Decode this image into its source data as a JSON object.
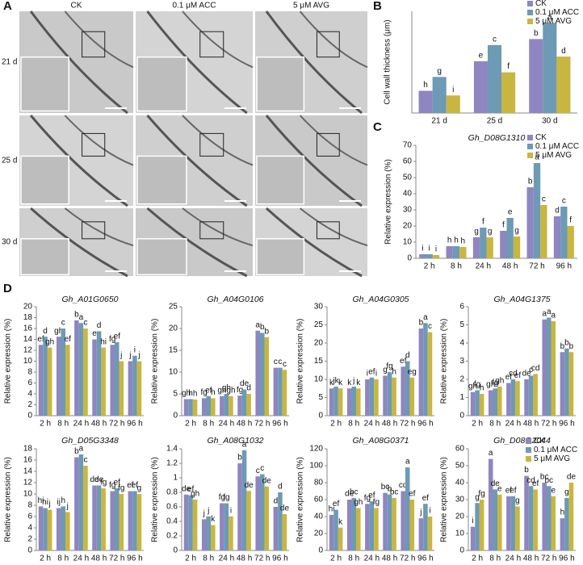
{
  "figure": {
    "panels": [
      "A",
      "B",
      "C",
      "D"
    ],
    "conditions": [
      "CK",
      "0.1 μM ACC",
      "5 μM AVG"
    ],
    "timepoints": [
      "21 d",
      "25 d",
      "30 d"
    ]
  },
  "chart_data": [
    {
      "type": "bar",
      "ylabel": "Cell wall thickness (μm)",
      "categories": [
        "21 d",
        "25 d",
        "30 d"
      ],
      "ylim": [
        0,
        2.2
      ],
      "legend": "top-right",
      "series": [
        {
          "name": "CK",
          "color": "#8e86c0",
          "values": [
            0.48,
            1.12,
            1.6
          ],
          "letters": [
            "h",
            "e",
            "b"
          ]
        },
        {
          "name": "0.1 μM ACC",
          "color": "#6d9ab4",
          "values": [
            0.78,
            1.47,
            1.95
          ],
          "letters": [
            "g",
            "c",
            "a"
          ]
        },
        {
          "name": "5 μM AVG",
          "color": "#c9b640",
          "values": [
            0.38,
            0.88,
            1.22
          ],
          "letters": [
            "i",
            "f",
            "d"
          ]
        }
      ]
    },
    {
      "type": "bar",
      "title": "Gh_D08G1310",
      "ylabel": "Relative expression (%)",
      "categories": [
        "2 h",
        "8 h",
        "24 h",
        "48 h",
        "72 h",
        "96 h"
      ],
      "ylim": [
        0,
        70
      ],
      "yticks": [
        0,
        10,
        20,
        30,
        40,
        50,
        60,
        70
      ],
      "legend": "top-right",
      "series": [
        {
          "name": "CK",
          "color": "#8e86c0",
          "values": [
            2.5,
            7.5,
            13,
            17,
            44,
            26
          ],
          "letters": [
            "i",
            "h",
            "g",
            "f",
            "b",
            "d"
          ]
        },
        {
          "name": "0.1 μM ACC",
          "color": "#6d9ab4",
          "values": [
            2.5,
            7.5,
            19,
            25,
            59,
            32
          ],
          "letters": [
            "i",
            "h",
            "f",
            "e",
            "a",
            "c"
          ]
        },
        {
          "name": "5 μM AVG",
          "color": "#c9b640",
          "values": [
            2,
            7,
            13,
            13.5,
            33,
            20
          ],
          "letters": [
            "i",
            "h",
            "g",
            "g",
            "c",
            "f"
          ]
        }
      ]
    },
    {
      "type": "bar",
      "title": "Gh_A01G0650",
      "ylabel": "Relative expression (%)",
      "categories": [
        "2 h",
        "8 h",
        "24 h",
        "48 h",
        "72 h",
        "96 h"
      ],
      "ylim": [
        0,
        20
      ],
      "yticks": [
        0,
        2,
        4,
        6,
        8,
        10,
        12,
        14,
        16,
        18,
        20
      ],
      "series": [
        {
          "color": "#8e86c0",
          "values": [
            13,
            14.5,
            17.5,
            14,
            13,
            10
          ],
          "letters": [
            "ef",
            "gh",
            "b",
            "e",
            "fg",
            "j"
          ]
        },
        {
          "color": "#6d9ab4",
          "values": [
            14.5,
            16,
            17,
            15.5,
            13.5,
            11
          ],
          "letters": [
            "d",
            "c",
            "a",
            "d",
            "ef",
            "i"
          ]
        },
        {
          "color": "#c9b640",
          "values": [
            12.5,
            13,
            16,
            12.5,
            10,
            10
          ],
          "letters": [
            "gh",
            "ef",
            "c",
            "hi",
            "j",
            "j"
          ]
        }
      ]
    },
    {
      "type": "bar",
      "title": "Gh_A04G0106",
      "ylabel": "Relative expression (%)",
      "categories": [
        "2 h",
        "8 h",
        "24 h",
        "48 h",
        "72 h",
        "96 h"
      ],
      "ylim": [
        0,
        25
      ],
      "yticks": [
        0,
        5,
        10,
        15,
        20,
        25
      ],
      "series": [
        {
          "color": "#8e86c0",
          "values": [
            3.8,
            4,
            4.5,
            4.6,
            19.5,
            11
          ],
          "letters": [
            "gh",
            "fg",
            "gh",
            "fg",
            "a",
            "c"
          ]
        },
        {
          "color": "#6d9ab4",
          "values": [
            3.8,
            4.5,
            5,
            6,
            19,
            11
          ],
          "letters": [
            "h",
            "ef",
            "gh",
            "de",
            "b",
            "c"
          ]
        },
        {
          "color": "#c9b640",
          "values": [
            3.7,
            4,
            4.5,
            5,
            18,
            10.5
          ],
          "letters": [
            "h",
            "h",
            "gh",
            "d",
            "b",
            "c"
          ]
        }
      ]
    },
    {
      "type": "bar",
      "title": "Gh_A04G0305",
      "ylabel": "Relative expression (%)",
      "categories": [
        "2 h",
        "8 h",
        "24 h",
        "48 h",
        "72 h",
        "96 h"
      ],
      "ylim": [
        0,
        30
      ],
      "yticks": [
        0,
        5,
        10,
        15,
        20,
        25,
        30
      ],
      "series": [
        {
          "color": "#8e86c0",
          "values": [
            7.5,
            7.5,
            10,
            11,
            13.5,
            24
          ],
          "letters": [
            "k",
            "k",
            "i",
            "g",
            "ef",
            "b"
          ]
        },
        {
          "color": "#6d9ab4",
          "values": [
            8,
            8,
            10.5,
            12,
            15,
            25.5
          ],
          "letters": [
            "jk",
            "j",
            "ef",
            "fg",
            "d",
            "a"
          ]
        },
        {
          "color": "#c9b640",
          "values": [
            7.5,
            7.5,
            10,
            10.5,
            10.5,
            23
          ],
          "letters": [
            "k",
            "k",
            "i",
            "h",
            "eg",
            "c"
          ]
        }
      ]
    },
    {
      "type": "bar",
      "title": "Gh_A04G1375",
      "ylabel": "Relative expression (%)",
      "categories": [
        "2 h",
        "8 h",
        "24 h",
        "48 h",
        "72 h",
        "96 h"
      ],
      "ylim": [
        0,
        6
      ],
      "yticks": [
        0,
        1,
        2,
        3,
        4,
        5,
        6
      ],
      "series": [
        {
          "color": "#8e86c0",
          "values": [
            1.3,
            1.4,
            1.8,
            2,
            5.3,
            3.5
          ],
          "letters": [
            "gh",
            "gh",
            "ef",
            "de",
            "a",
            "b"
          ]
        },
        {
          "color": "#6d9ab4",
          "values": [
            1.4,
            1.5,
            2,
            2.2,
            5.4,
            3.7
          ],
          "letters": [
            "fg",
            "fg",
            "cd",
            "c",
            "a",
            "b"
          ]
        },
        {
          "color": "#c9b640",
          "values": [
            1.2,
            1.6,
            1.9,
            2.3,
            5.2,
            3.5
          ],
          "letters": [
            "h",
            "gh",
            "ef",
            "cd",
            "a",
            "b"
          ]
        }
      ]
    },
    {
      "type": "bar",
      "title": "Gh_D05G3348",
      "ylabel": "Relative expression (%)",
      "categories": [
        "2 h",
        "8 h",
        "24 h",
        "48 h",
        "72 h",
        "96 h"
      ],
      "ylim": [
        0,
        18
      ],
      "yticks": [
        0,
        2,
        4,
        6,
        8,
        10,
        12,
        14,
        16,
        18
      ],
      "series": [
        {
          "color": "#8e86c0",
          "values": [
            7.8,
            7.5,
            16.5,
            11.5,
            10.5,
            10.5
          ],
          "letters": [
            "hi",
            "ij",
            "b",
            "de",
            "fg",
            "ef"
          ]
        },
        {
          "color": "#6d9ab4",
          "values": [
            7.5,
            7.8,
            17,
            11.5,
            11,
            10.5
          ],
          "letters": [
            "hi",
            "h",
            "a",
            "de",
            "ef",
            "ef"
          ]
        },
        {
          "color": "#c9b640",
          "values": [
            7.2,
            6.8,
            15,
            11,
            10,
            10
          ],
          "letters": [
            "j",
            "j",
            "c",
            "fg",
            "fg",
            "g"
          ]
        }
      ]
    },
    {
      "type": "bar",
      "title": "Gh_A08G1032",
      "ylabel": "Relative expression (%)",
      "categories": [
        "2 h",
        "8 h",
        "24 h",
        "48 h",
        "72 h",
        "96 h"
      ],
      "ylim": [
        0,
        1.4
      ],
      "yticks": [
        0,
        0.2,
        0.4,
        0.6,
        0.8,
        1,
        1.2,
        1.4
      ],
      "series": [
        {
          "color": "#8e86c0",
          "values": [
            0.77,
            0.43,
            0.65,
            1.2,
            1.02,
            0.6
          ],
          "letters": [
            "de",
            "j",
            "fg",
            "b",
            "c",
            "d"
          ]
        },
        {
          "color": "#6d9ab4",
          "values": [
            0.76,
            0.47,
            0.65,
            1.38,
            1.05,
            0.8
          ],
          "letters": [
            "ef",
            "j",
            "fg",
            "a",
            "c",
            "d"
          ]
        },
        {
          "color": "#c9b640",
          "values": [
            0.7,
            0.35,
            0.47,
            0.82,
            0.88,
            0.5
          ],
          "letters": [
            "gh",
            "k",
            "i",
            "de",
            "de",
            "de"
          ]
        }
      ]
    },
    {
      "type": "bar",
      "title": "Gh_A08G0371",
      "ylabel": "Relative expression (%)",
      "categories": [
        "2 h",
        "8 h",
        "24 h",
        "48 h",
        "72 h",
        "96 h"
      ],
      "ylim": [
        0,
        120
      ],
      "yticks": [
        0,
        20,
        40,
        60,
        80,
        100,
        120
      ],
      "series": [
        {
          "color": "#8e86c0",
          "values": [
            42,
            60,
            55,
            68,
            70,
            38
          ],
          "letters": [
            "hi",
            "de",
            "fg",
            "bc",
            "cd",
            "j"
          ]
        },
        {
          "color": "#6d9ab4",
          "values": [
            48,
            62,
            58,
            66,
            98,
            55
          ],
          "letters": [
            "ef",
            "bc",
            "ef",
            "b",
            "a",
            "ef"
          ]
        },
        {
          "color": "#c9b640",
          "values": [
            27,
            50,
            50,
            62,
            60,
            40
          ],
          "letters": [
            "k",
            "gh",
            "fg",
            "bc",
            "ef",
            "i"
          ]
        }
      ]
    },
    {
      "type": "bar",
      "title": "Gh_D08G2044",
      "ylabel": "Relative expression (%)",
      "categories": [
        "2 h",
        "8 h",
        "24 h",
        "48 h",
        "72 h",
        "96 h"
      ],
      "ylim": [
        0,
        60
      ],
      "yticks": [
        0,
        10,
        20,
        30,
        40,
        50,
        60
      ],
      "legend": "top-right",
      "series": [
        {
          "name": "CK",
          "color": "#8e86c0",
          "values": [
            14,
            54,
            32,
            44,
            40,
            19
          ],
          "letters": [
            "i",
            "a",
            "ef",
            "b",
            "bc",
            "h"
          ]
        },
        {
          "name": "0.1 μM ACC",
          "color": "#6d9ab4",
          "values": [
            28,
            36,
            32,
            38,
            38,
            31
          ],
          "letters": [
            "g",
            "de",
            "ef",
            "cd",
            "bc",
            "g"
          ]
        },
        {
          "name": "5 μM AVG",
          "color": "#c9b640",
          "values": [
            30,
            33,
            26,
            36,
            32,
            40
          ],
          "letters": [
            "fg",
            "e",
            "g",
            "ef",
            "e",
            "de"
          ]
        }
      ]
    }
  ]
}
